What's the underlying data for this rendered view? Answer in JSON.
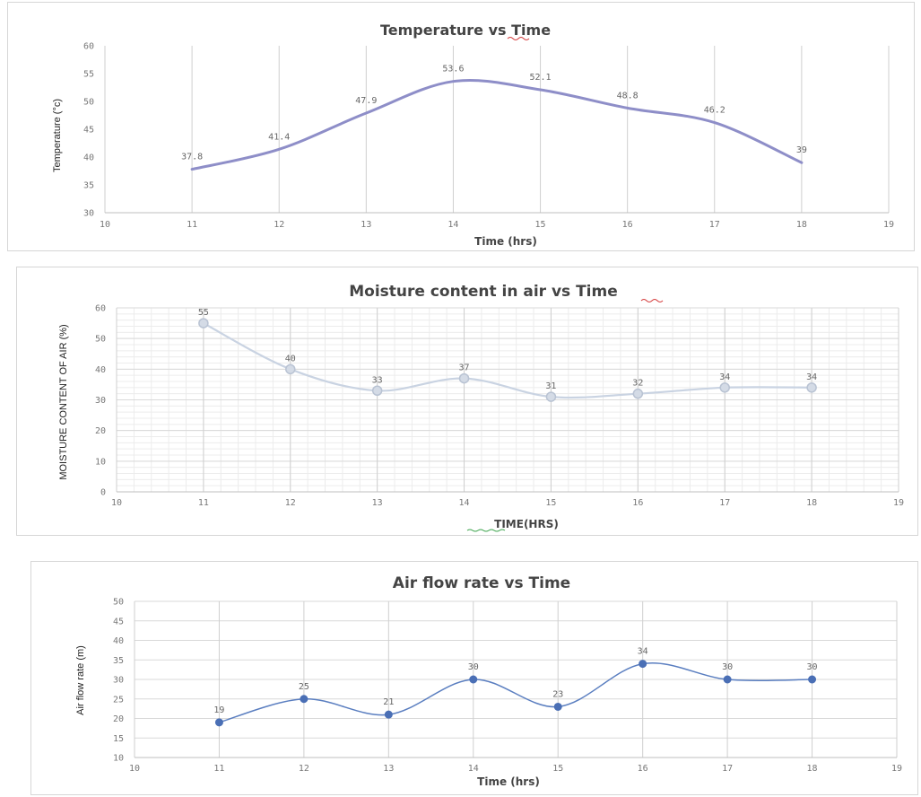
{
  "chart_data": [
    {
      "type": "line",
      "title_parts": [
        "Temperature ",
        "vs",
        " Time"
      ],
      "xlabel": "Time (hrs)",
      "ylabel": "Temperature (°c)",
      "xlim": [
        10,
        19
      ],
      "ylim": [
        30,
        60
      ],
      "xticks": [
        10,
        11,
        12,
        13,
        14,
        15,
        16,
        17,
        18,
        19
      ],
      "yticks": [
        30,
        35,
        40,
        45,
        50,
        55,
        60
      ],
      "grid": "vertical",
      "marker": "none",
      "line_color": "#8e8ec8",
      "x": [
        11,
        12,
        13,
        14,
        15,
        16,
        17,
        18
      ],
      "y": [
        37.8,
        41.4,
        47.9,
        53.6,
        52.1,
        48.8,
        46.2,
        39
      ],
      "data_labels": [
        "37.8",
        "41.4",
        "47.9",
        "53.6",
        "52.1",
        "48.8",
        "46.2",
        "39"
      ]
    },
    {
      "type": "line",
      "title_parts": [
        "Moisture content in air ",
        "vs",
        " Time"
      ],
      "xlabel_parts": [
        "TIME",
        "(HRS)"
      ],
      "ylabel": "MOISTURE CONTENT OF AIR (%)",
      "xlim": [
        10,
        19
      ],
      "ylim": [
        0,
        60
      ],
      "xticks": [
        10,
        11,
        12,
        13,
        14,
        15,
        16,
        17,
        18,
        19
      ],
      "yticks": [
        0,
        10,
        20,
        30,
        40,
        50,
        60
      ],
      "grid": "dense",
      "marker": "circle",
      "line_color": "#c9d3e2",
      "x": [
        11,
        12,
        13,
        14,
        15,
        16,
        17,
        18
      ],
      "y": [
        55,
        40,
        33,
        37,
        31,
        32,
        34,
        34
      ],
      "data_labels": [
        "55",
        "40",
        "33",
        "37",
        "31",
        "32",
        "34",
        "34"
      ]
    },
    {
      "type": "line",
      "title": "Air flow rate vs Time",
      "xlabel": "Time (hrs)",
      "ylabel": "Air flow rate (m)",
      "xlim": [
        10,
        19
      ],
      "ylim": [
        10,
        50
      ],
      "xticks": [
        10,
        11,
        12,
        13,
        14,
        15,
        16,
        17,
        18,
        19
      ],
      "yticks": [
        10,
        15,
        20,
        25,
        30,
        35,
        40,
        45,
        50
      ],
      "grid": "both",
      "marker": "dot",
      "line_color": "#5a7ec0",
      "x": [
        11,
        12,
        13,
        14,
        15,
        16,
        17,
        18
      ],
      "y": [
        19,
        25,
        21,
        30,
        23,
        34,
        30,
        30
      ],
      "data_labels": [
        "19",
        "25",
        "21",
        "30",
        "23",
        "34",
        "30",
        "30"
      ]
    }
  ]
}
